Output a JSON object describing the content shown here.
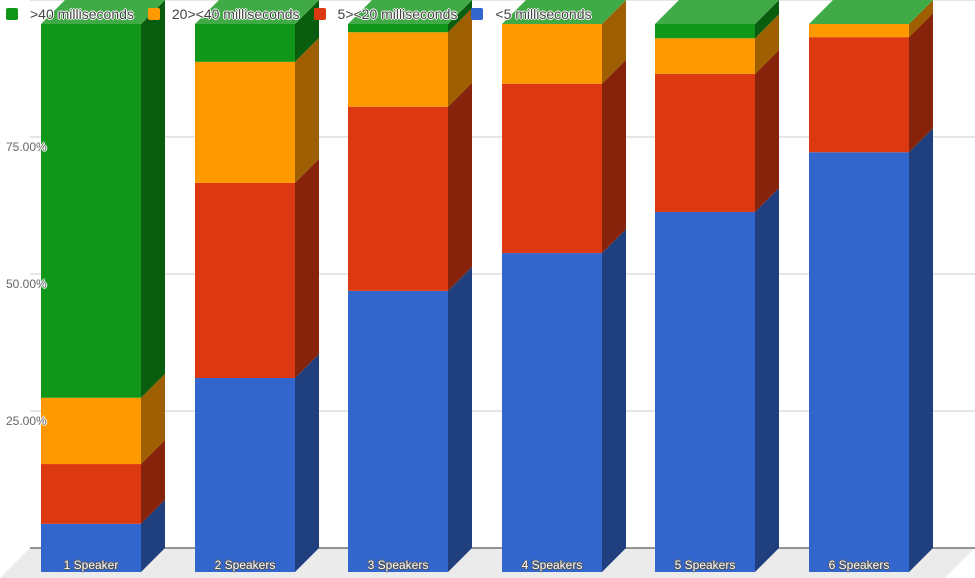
{
  "chart_data": {
    "type": "bar",
    "stacked": true,
    "percent_stacked": true,
    "three_d": true,
    "title": "",
    "xlabel": "",
    "ylabel": "",
    "ylim": [
      0,
      100
    ],
    "y_ticks": [
      "25.00%",
      "50.00%",
      "75.00%"
    ],
    "grid": true,
    "legend_position": "top",
    "categories": [
      "1 Speaker",
      "2 Speakers",
      "3 Speakers",
      "4 Speakers",
      "5 Speakers",
      "6 Speakers"
    ],
    "series": [
      {
        "name": "<5 milliseconds",
        "color": "#3366cc",
        "values": [
          8.8,
          35.4,
          51.3,
          58.2,
          65.7,
          76.6
        ]
      },
      {
        "name": "5><20 milliseconds",
        "color": "#dc3912",
        "values": [
          10.9,
          35.6,
          33.6,
          30.9,
          25.2,
          21.0
        ]
      },
      {
        "name": "20><40 milliseconds",
        "color": "#ff9900",
        "values": [
          12.1,
          22.1,
          13.6,
          10.9,
          6.5,
          2.4
        ]
      },
      {
        "name": ">40 milliseconds",
        "color": "#109618",
        "values": [
          68.2,
          6.9,
          1.5,
          0.0,
          2.6,
          0.0
        ]
      }
    ]
  },
  "legend": [
    {
      "label": ">40 milliseconds",
      "color": "#109618"
    },
    {
      "label": "20><40 milliseconds",
      "color": "#ff9900"
    },
    {
      "label": "5><20 milliseconds",
      "color": "#dc3912"
    },
    {
      "label": "<5 milliseconds",
      "color": "#3366cc"
    }
  ],
  "y_axis": {
    "ticks": [
      {
        "label": "75.00%",
        "value": 75
      },
      {
        "label": "50.00%",
        "value": 50
      },
      {
        "label": "25.00%",
        "value": 25
      }
    ]
  }
}
